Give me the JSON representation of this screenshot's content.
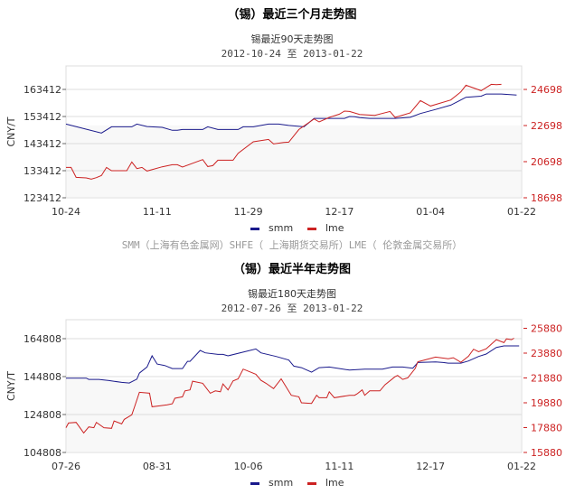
{
  "note": "SMM（上海有色金属网）SHFE（ 上海期货交易所）LME（ 伦敦金属交易所）",
  "colors": {
    "smm": "#1a1a8c",
    "lme": "#cc2222",
    "grid": "#dddddd"
  },
  "chart_data": [
    {
      "type": "line",
      "title": "（锡）最近三个月走势图",
      "subtitle": "锡最近90天走势图",
      "date_range": "2012-10-24 至 2013-01-22",
      "ylabel": "CNY/T",
      "xlim": [
        "2012-10-24",
        "2013-01-22"
      ],
      "x_ticks": [
        "10-24",
        "11-11",
        "11-29",
        "12-17",
        "01-04",
        "01-22"
      ],
      "y_left": {
        "ylim": [
          123412,
          172079
        ],
        "ticks": [
          123412,
          133412,
          143412,
          153412,
          163412
        ]
      },
      "y_right": {
        "ylim": [
          18698,
          26000
        ],
        "ticks": [
          18698,
          20698,
          22698,
          24698
        ]
      },
      "grid": true,
      "legend": "bottom",
      "series": [
        {
          "name": "smm",
          "axis": "left",
          "points": [
            [
              "2012-10-24",
              150600
            ],
            [
              "2012-10-31",
              147300
            ],
            [
              "2012-11-02",
              149600
            ],
            [
              "2012-11-06",
              149600
            ],
            [
              "2012-11-07",
              150600
            ],
            [
              "2012-11-09",
              149700
            ],
            [
              "2012-11-12",
              149400
            ],
            [
              "2012-11-14",
              148300
            ],
            [
              "2012-11-15",
              148300
            ],
            [
              "2012-11-16",
              148600
            ],
            [
              "2012-11-20",
              148600
            ],
            [
              "2012-11-21",
              149600
            ],
            [
              "2012-11-23",
              148600
            ],
            [
              "2012-11-27",
              148600
            ],
            [
              "2012-11-28",
              149600
            ],
            [
              "2012-11-30",
              149600
            ],
            [
              "2012-12-03",
              150600
            ],
            [
              "2012-12-05",
              150600
            ],
            [
              "2012-12-07",
              150100
            ],
            [
              "2012-12-10",
              149600
            ],
            [
              "2012-12-12",
              152700
            ],
            [
              "2012-12-18",
              152700
            ],
            [
              "2012-12-19",
              153400
            ],
            [
              "2012-12-20",
              153300
            ],
            [
              "2012-12-21",
              153000
            ],
            [
              "2012-12-23",
              152700
            ],
            [
              "2012-12-28",
              152700
            ],
            [
              "2012-12-31",
              153100
            ],
            [
              "2013-01-02",
              154500
            ],
            [
              "2013-01-05",
              156000
            ],
            [
              "2013-01-08",
              157600
            ],
            [
              "2013-01-11",
              160500
            ],
            [
              "2013-01-14",
              160900
            ],
            [
              "2013-01-15",
              161700
            ],
            [
              "2013-01-18",
              161700
            ],
            [
              "2013-01-21",
              161300
            ]
          ]
        },
        {
          "name": "lme",
          "axis": "right",
          "points": [
            [
              "2012-10-24",
              20380
            ],
            [
              "2012-10-25",
              20380
            ],
            [
              "2012-10-26",
              19830
            ],
            [
              "2012-10-28",
              19800
            ],
            [
              "2012-10-29",
              19730
            ],
            [
              "2012-10-30",
              19815
            ],
            [
              "2012-10-31",
              19930
            ],
            [
              "2012-11-01",
              20380
            ],
            [
              "2012-11-02",
              20200
            ],
            [
              "2012-11-05",
              20200
            ],
            [
              "2012-11-06",
              20680
            ],
            [
              "2012-11-07",
              20315
            ],
            [
              "2012-11-08",
              20380
            ],
            [
              "2012-11-09",
              20180
            ],
            [
              "2012-11-12",
              20415
            ],
            [
              "2012-11-14",
              20530
            ],
            [
              "2012-11-15",
              20530
            ],
            [
              "2012-11-16",
              20400
            ],
            [
              "2012-11-20",
              20815
            ],
            [
              "2012-11-21",
              20430
            ],
            [
              "2012-11-22",
              20480
            ],
            [
              "2012-11-23",
              20780
            ],
            [
              "2012-11-26",
              20780
            ],
            [
              "2012-11-27",
              21165
            ],
            [
              "2012-11-30",
              21800
            ],
            [
              "2012-12-03",
              21930
            ],
            [
              "2012-12-04",
              21680
            ],
            [
              "2012-12-06",
              21765
            ],
            [
              "2012-12-07",
              21780
            ],
            [
              "2012-12-09",
              22480
            ],
            [
              "2012-12-12",
              23065
            ],
            [
              "2012-12-13",
              22900
            ],
            [
              "2012-12-15",
              23150
            ],
            [
              "2012-12-17",
              23330
            ],
            [
              "2012-12-18",
              23500
            ],
            [
              "2012-12-19",
              23480
            ],
            [
              "2012-12-21",
              23315
            ],
            [
              "2012-12-24",
              23265
            ],
            [
              "2012-12-27",
              23480
            ],
            [
              "2012-12-28",
              23150
            ],
            [
              "2012-12-31",
              23400
            ],
            [
              "2013-01-02",
              24080
            ],
            [
              "2013-01-04",
              23780
            ],
            [
              "2013-01-08",
              24115
            ],
            [
              "2013-01-10",
              24565
            ],
            [
              "2013-01-11",
              24930
            ],
            [
              "2013-01-14",
              24630
            ],
            [
              "2013-01-16",
              24980
            ],
            [
              "2013-01-17",
              24965
            ],
            [
              "2013-01-18",
              24980
            ]
          ]
        }
      ]
    },
    {
      "type": "line",
      "title": "（锡）最近半年走势图",
      "subtitle": "锡最近180天走势图",
      "date_range": "2012-07-26 至 2013-01-22",
      "ylabel": "CNY/T",
      "xlim": [
        "2012-07-26",
        "2013-01-22"
      ],
      "x_ticks": [
        "07-26",
        "08-31",
        "10-06",
        "11-11",
        "12-17",
        "01-22"
      ],
      "y_left": {
        "ylim": [
          104808,
          174808
        ],
        "ticks": [
          104808,
          124808,
          144808,
          164808
        ]
      },
      "y_right": {
        "ylim": [
          15880,
          26570
        ],
        "ticks": [
          15880,
          17880,
          19880,
          21880,
          23880,
          25880
        ]
      },
      "grid": true,
      "legend": "bottom",
      "series": [
        {
          "name": "smm",
          "axis": "left",
          "points": [
            [
              "2012-07-26",
              144000
            ],
            [
              "2012-08-03",
              144000
            ],
            [
              "2012-08-04",
              143330
            ],
            [
              "2012-08-08",
              143330
            ],
            [
              "2012-08-12",
              142690
            ],
            [
              "2012-08-17",
              141740
            ],
            [
              "2012-08-20",
              141420
            ],
            [
              "2012-08-23",
              143490
            ],
            [
              "2012-08-24",
              146670
            ],
            [
              "2012-08-27",
              149850
            ],
            [
              "2012-08-29",
              155740
            ],
            [
              "2012-08-31",
              151440
            ],
            [
              "2012-09-03",
              150650
            ],
            [
              "2012-09-06",
              149060
            ],
            [
              "2012-09-10",
              149060
            ],
            [
              "2012-09-12",
              152870
            ],
            [
              "2012-09-13",
              152870
            ],
            [
              "2012-09-17",
              158600
            ],
            [
              "2012-09-19",
              157330
            ],
            [
              "2012-09-24",
              156530
            ],
            [
              "2012-09-26",
              156530
            ],
            [
              "2012-09-28",
              155740
            ],
            [
              "2012-10-09",
              159400
            ],
            [
              "2012-10-11",
              157330
            ],
            [
              "2012-10-17",
              155420
            ],
            [
              "2012-10-22",
              153510
            ],
            [
              "2012-10-24",
              150330
            ],
            [
              "2012-10-27",
              149530
            ],
            [
              "2012-10-31",
              147140
            ],
            [
              "2012-11-03",
              149530
            ],
            [
              "2012-11-07",
              149850
            ],
            [
              "2012-11-15",
              148260
            ],
            [
              "2012-11-21",
              148740
            ],
            [
              "2012-11-28",
              148740
            ],
            [
              "2012-12-02",
              149850
            ],
            [
              "2012-12-06",
              149850
            ],
            [
              "2012-12-10",
              149220
            ],
            [
              "2012-12-12",
              152240
            ],
            [
              "2012-12-19",
              152560
            ],
            [
              "2012-12-22",
              152240
            ],
            [
              "2012-12-24",
              151920
            ],
            [
              "2012-12-29",
              151920
            ],
            [
              "2013-01-01",
              153030
            ],
            [
              "2013-01-05",
              155420
            ],
            [
              "2013-01-08",
              156690
            ],
            [
              "2013-01-12",
              160190
            ],
            [
              "2013-01-15",
              160990
            ],
            [
              "2013-01-21",
              160990
            ]
          ]
        },
        {
          "name": "lme",
          "axis": "right",
          "points": [
            [
              "2012-07-26",
              17870
            ],
            [
              "2012-07-27",
              18250
            ],
            [
              "2012-07-30",
              18300
            ],
            [
              "2012-08-02",
              17450
            ],
            [
              "2012-08-04",
              17940
            ],
            [
              "2012-08-06",
              17870
            ],
            [
              "2012-08-07",
              18300
            ],
            [
              "2012-08-10",
              17870
            ],
            [
              "2012-08-13",
              17820
            ],
            [
              "2012-08-14",
              18420
            ],
            [
              "2012-08-17",
              18180
            ],
            [
              "2012-08-18",
              18540
            ],
            [
              "2012-08-21",
              18910
            ],
            [
              "2012-08-22",
              19510
            ],
            [
              "2012-08-24",
              20720
            ],
            [
              "2012-08-28",
              20650
            ],
            [
              "2012-08-29",
              19560
            ],
            [
              "2012-09-01",
              19630
            ],
            [
              "2012-09-04",
              19710
            ],
            [
              "2012-09-06",
              19800
            ],
            [
              "2012-09-07",
              20240
            ],
            [
              "2012-09-10",
              20360
            ],
            [
              "2012-09-11",
              20840
            ],
            [
              "2012-09-13",
              20920
            ],
            [
              "2012-09-14",
              21620
            ],
            [
              "2012-09-18",
              21450
            ],
            [
              "2012-09-21",
              20650
            ],
            [
              "2012-09-23",
              20840
            ],
            [
              "2012-09-25",
              20770
            ],
            [
              "2012-09-26",
              21400
            ],
            [
              "2012-09-28",
              20920
            ],
            [
              "2012-09-30",
              21640
            ],
            [
              "2012-10-02",
              21810
            ],
            [
              "2012-10-04",
              22590
            ],
            [
              "2012-10-09",
              22180
            ],
            [
              "2012-10-11",
              21690
            ],
            [
              "2012-10-13",
              21450
            ],
            [
              "2012-10-16",
              21020
            ],
            [
              "2012-10-19",
              21810
            ],
            [
              "2012-10-23",
              20480
            ],
            [
              "2012-10-26",
              20360
            ],
            [
              "2012-10-27",
              19880
            ],
            [
              "2012-10-31",
              19830
            ],
            [
              "2012-11-02",
              20480
            ],
            [
              "2012-11-03",
              20290
            ],
            [
              "2012-11-06",
              20290
            ],
            [
              "2012-11-07",
              20770
            ],
            [
              "2012-11-09",
              20290
            ],
            [
              "2012-11-15",
              20480
            ],
            [
              "2012-11-17",
              20480
            ],
            [
              "2012-11-18",
              20600
            ],
            [
              "2012-11-20",
              20920
            ],
            [
              "2012-11-21",
              20480
            ],
            [
              "2012-11-23",
              20840
            ],
            [
              "2012-11-27",
              20840
            ],
            [
              "2012-11-29",
              21330
            ],
            [
              "2012-12-03",
              21980
            ],
            [
              "2012-12-04",
              22080
            ],
            [
              "2012-12-06",
              21760
            ],
            [
              "2012-12-08",
              21890
            ],
            [
              "2012-12-11",
              22660
            ],
            [
              "2012-12-12",
              23190
            ],
            [
              "2012-12-15",
              23340
            ],
            [
              "2012-12-19",
              23560
            ],
            [
              "2012-12-24",
              23430
            ],
            [
              "2012-12-26",
              23510
            ],
            [
              "2012-12-29",
              23140
            ],
            [
              "2013-01-01",
              23630
            ],
            [
              "2013-01-03",
              24190
            ],
            [
              "2013-01-05",
              23990
            ],
            [
              "2013-01-08",
              24230
            ],
            [
              "2013-01-12",
              24960
            ],
            [
              "2013-01-15",
              24720
            ],
            [
              "2013-01-16",
              25030
            ],
            [
              "2013-01-18",
              24960
            ],
            [
              "2013-01-19",
              25080
            ]
          ]
        }
      ]
    }
  ]
}
